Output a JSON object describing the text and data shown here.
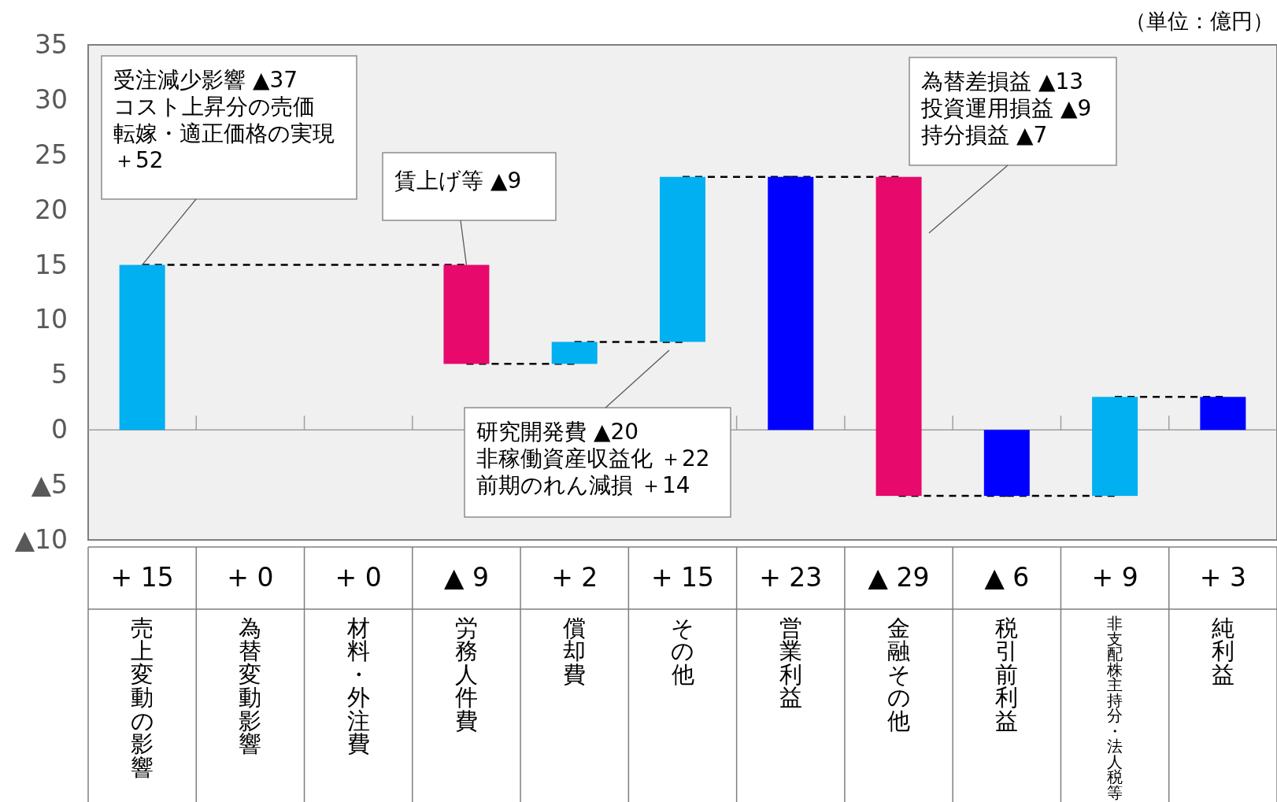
{
  "chart_data": {
    "type": "bar",
    "categories": [
      "売上変動の影響",
      "為替変動影響",
      "材料・外注費",
      "労務人件費",
      "償却費",
      "その他",
      "営業利益",
      "金融その他",
      "税引前利益",
      "非支配株主持分・法人税等",
      "純利益"
    ],
    "values": [
      15,
      0,
      0,
      -9,
      2,
      15,
      23,
      -29,
      -6,
      9,
      3
    ],
    "base": [
      0,
      null,
      null,
      15,
      6,
      8,
      0,
      23,
      0,
      -6,
      0
    ],
    "colors": [
      "#00b0f0",
      null,
      null,
      "#e8096c",
      "#00b0f0",
      "#00b0f0",
      "#0000ff",
      "#e8096c",
      "#0000ff",
      "#00b0f0",
      "#0000ff"
    ],
    "value_labels": [
      "+ 15",
      "+ 0",
      "+ 0",
      "▲ 9",
      "+ 2",
      "+ 15",
      "+ 23",
      "▲ 29",
      "▲ 6",
      "+ 9",
      "+ 3"
    ],
    "ylim": [
      -10,
      35
    ],
    "yticks": [
      {
        "value": -10,
        "label": "▲10"
      },
      {
        "value": -5,
        "label": "▲5"
      },
      0,
      5,
      10,
      15,
      20,
      25,
      30,
      35
    ],
    "grid": false,
    "ref_lines": [
      {
        "axis": "y",
        "value": 0,
        "color": "#a0a0a0"
      }
    ],
    "annotations": [
      "（単位：億円）",
      {
        "text": "受注減少影響 ▲37\nコスト上昇分の売価転嫁・適正価格の実現＋52",
        "x": "売上変動の影響",
        "y": 15
      },
      {
        "text": "賃上げ等  ▲9",
        "x": "労務人件費",
        "y": 15
      },
      "研究開発費 ▲20\n非稼働資産収益化 ＋22\n前期のれん減損 ＋14",
      "為替差損益 ▲13\n投資運用損益 ▲9\n持分損益 ▲7"
    ]
  }
}
